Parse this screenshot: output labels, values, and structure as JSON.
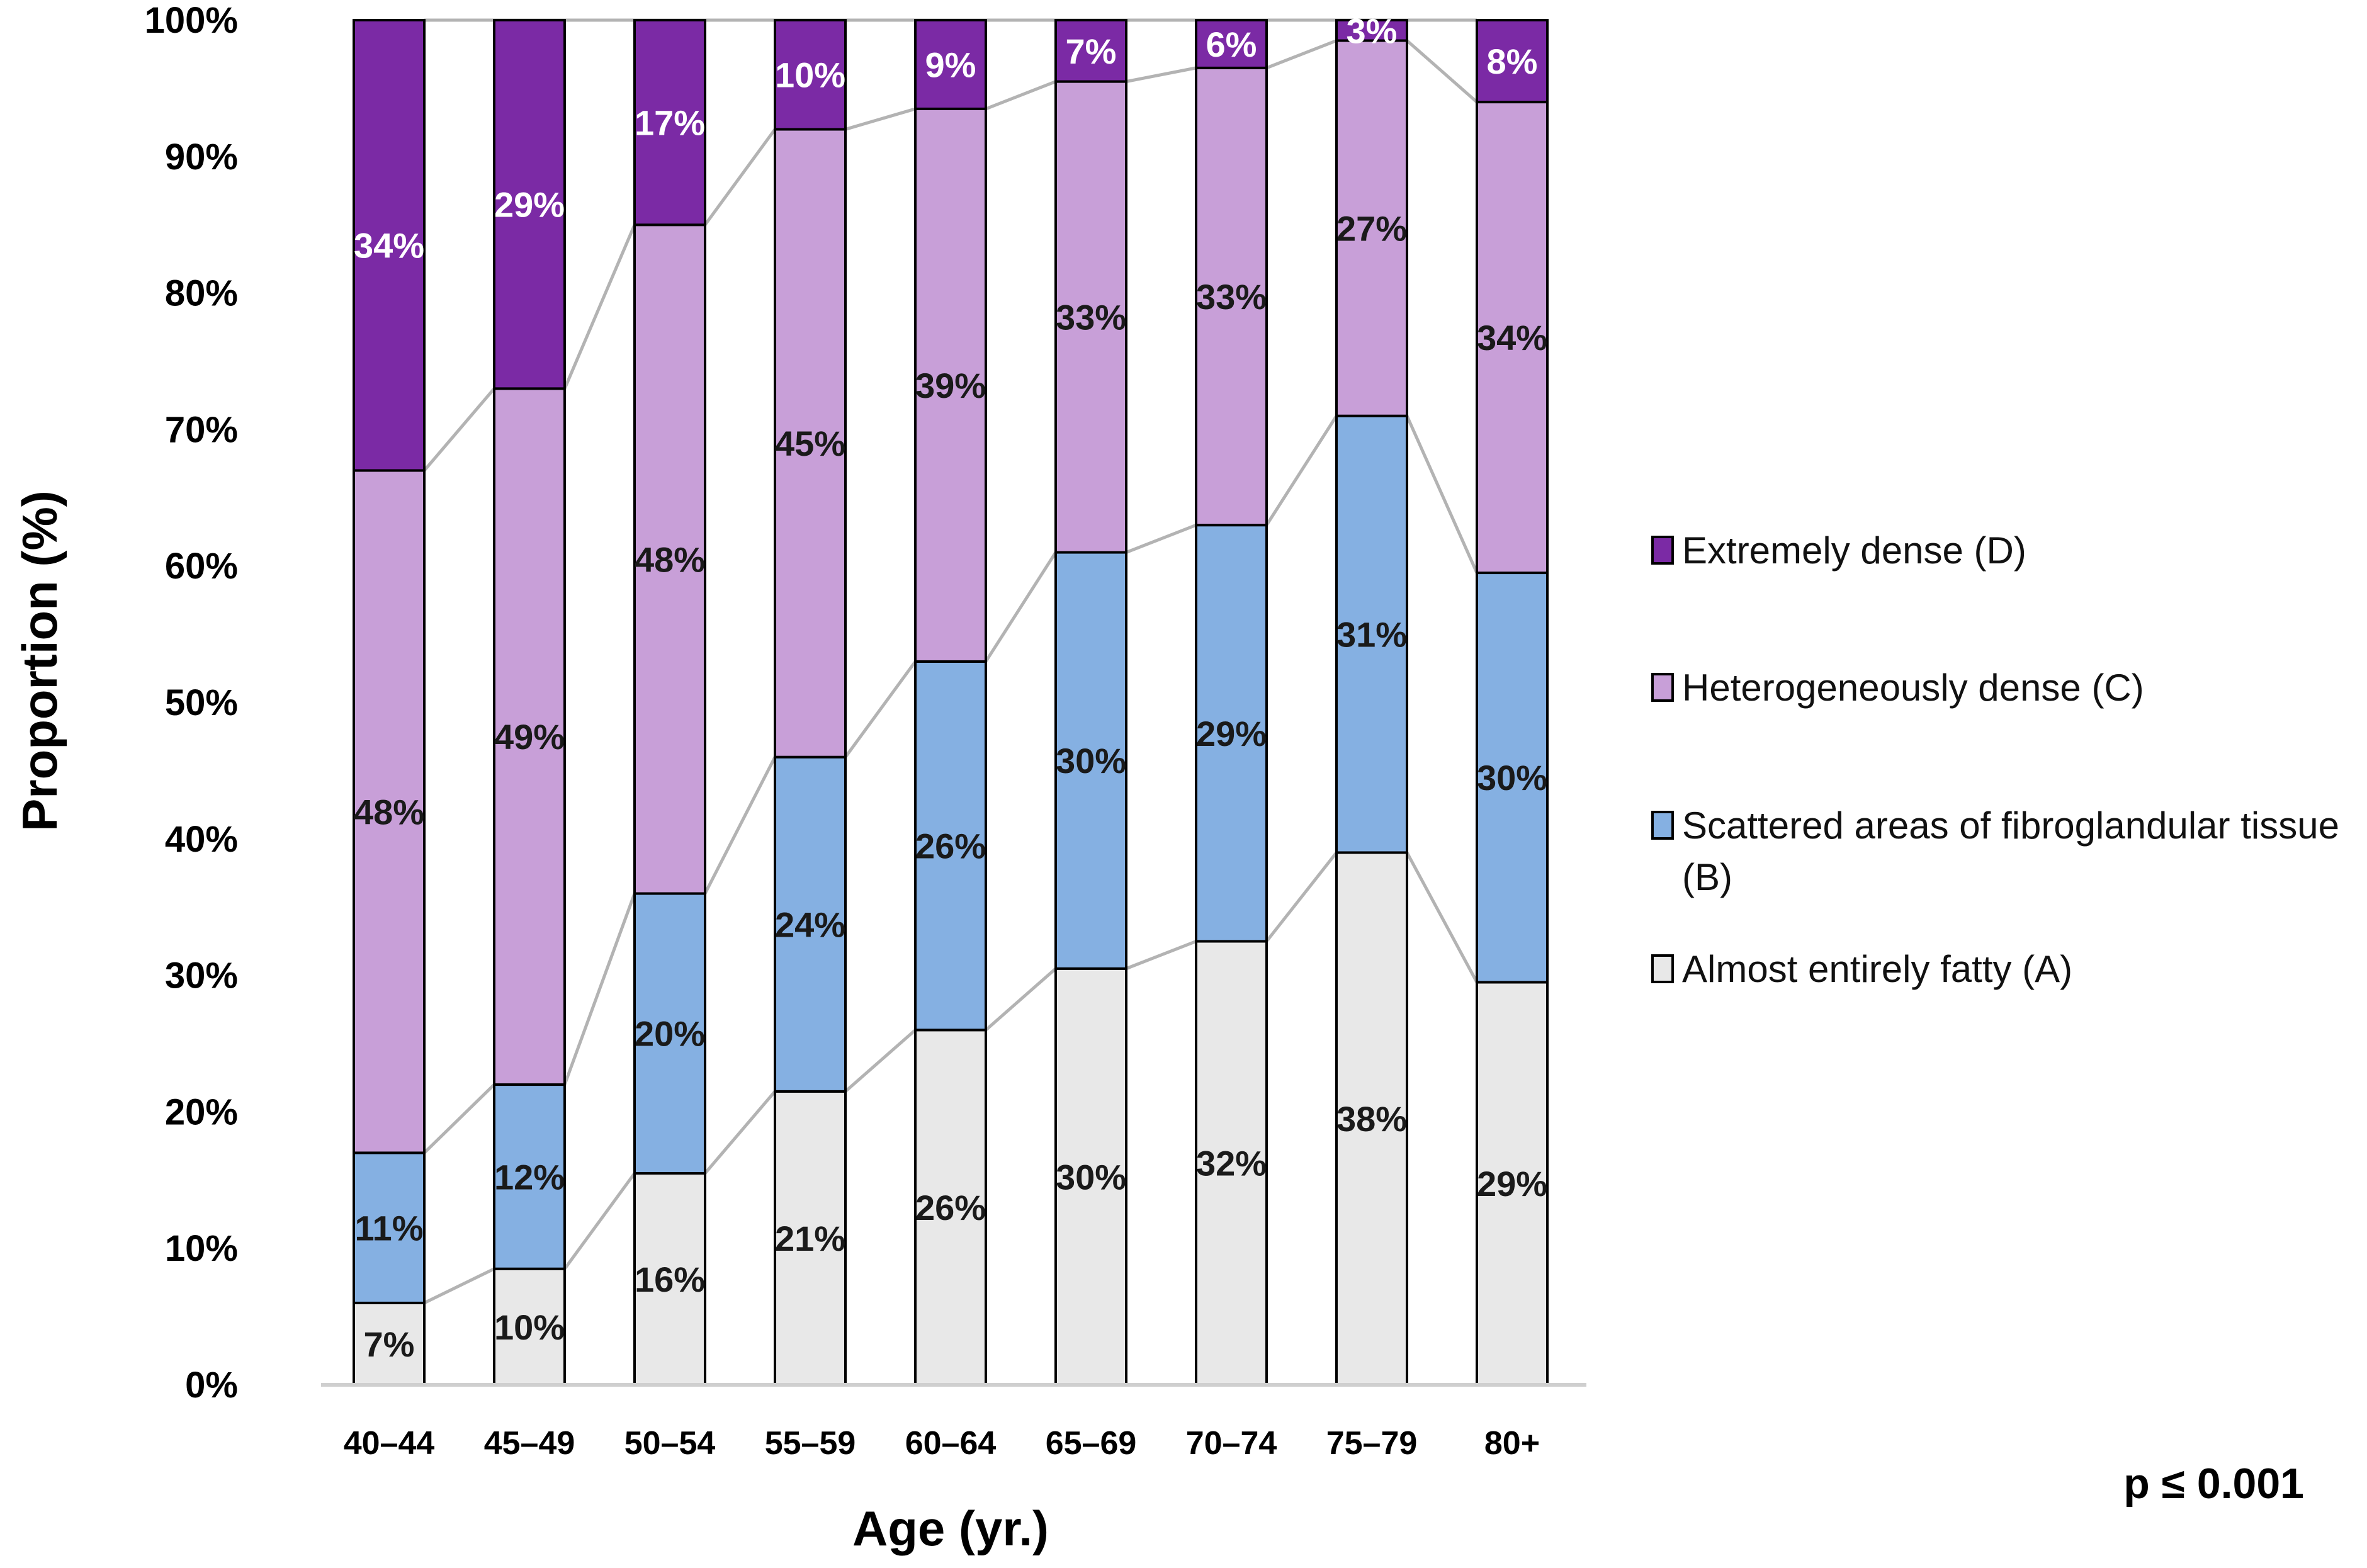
{
  "chart_data": {
    "type": "bar",
    "stacked": true,
    "categories": [
      "40–44",
      "45–49",
      "50–54",
      "55–59",
      "60–64",
      "65–69",
      "70–74",
      "75–79",
      "80+"
    ],
    "series": [
      {
        "name": "Almost entirely fatty  (A)",
        "color": "#e8e8e8",
        "label_color": "#1a1a1a",
        "values": [
          7,
          10,
          16,
          21,
          26,
          30,
          32,
          38,
          29
        ],
        "labels": [
          "7%",
          "10%",
          "16%",
          "21%",
          "26%",
          "30%",
          "32%",
          "38%",
          "29%"
        ]
      },
      {
        "name": "Scattered areas of fibroglandular tissue (B)",
        "color": "#85b0e2",
        "label_color": "#1a1a1a",
        "values": [
          11,
          12,
          20,
          24,
          26,
          30,
          29,
          31,
          30
        ],
        "labels": [
          "11%",
          "12%",
          "20%",
          "24%",
          "26%",
          "30%",
          "29%",
          "31%",
          "30%"
        ]
      },
      {
        "name": "Heterogeneously dense (C)",
        "color": "#c89fd8",
        "label_color": "#1a1a1a",
        "values": [
          48,
          49,
          48,
          45,
          39,
          33,
          33,
          27,
          34
        ],
        "labels": [
          "48%",
          "49%",
          "48%",
          "45%",
          "39%",
          "33%",
          "33%",
          "27%",
          "34%"
        ]
      },
      {
        "name": "Extremely dense (D)",
        "color": "#7b2aa5",
        "label_color": "#ffffff",
        "values": [
          34,
          29,
          17,
          10,
          9,
          7,
          6,
          3,
          8
        ],
        "labels": [
          "34%",
          "29%",
          "17%",
          "10%",
          "9%",
          "7%",
          "6%",
          "3%",
          "8%"
        ]
      }
    ],
    "boundaries": [
      [
        6,
        8.5,
        15.5,
        21.5,
        26,
        30.5,
        32.5,
        39,
        29.5
      ],
      [
        17,
        22,
        36,
        46,
        53,
        61,
        63,
        71,
        59.5
      ],
      [
        67,
        73,
        85,
        92,
        93.5,
        95.5,
        96.5,
        98.5,
        94
      ]
    ],
    "ylim": [
      0,
      100
    ],
    "yticks": [
      "0%",
      "10%",
      "20%",
      "30%",
      "40%",
      "50%",
      "60%",
      "70%",
      "80%",
      "90%",
      "100%"
    ],
    "xlabel": "Age (yr.)",
    "ylabel": "Proportion (%)",
    "legend": {
      "position": "right",
      "items": [
        {
          "lines": [
            "Extremely dense (D)"
          ],
          "color": "#7b2aa5"
        },
        {
          "lines": [
            "Heterogeneously dense (C)"
          ],
          "color": "#c89fd8"
        },
        {
          "lines": [
            "Scattered areas of fibroglandular tissue",
            "(B)"
          ],
          "color": "#85b0e2"
        },
        {
          "lines": [
            "Almost entirely fatty  (A)"
          ],
          "color": "#e8e8e8"
        }
      ]
    },
    "annotation": "p ≤ 0.001"
  }
}
